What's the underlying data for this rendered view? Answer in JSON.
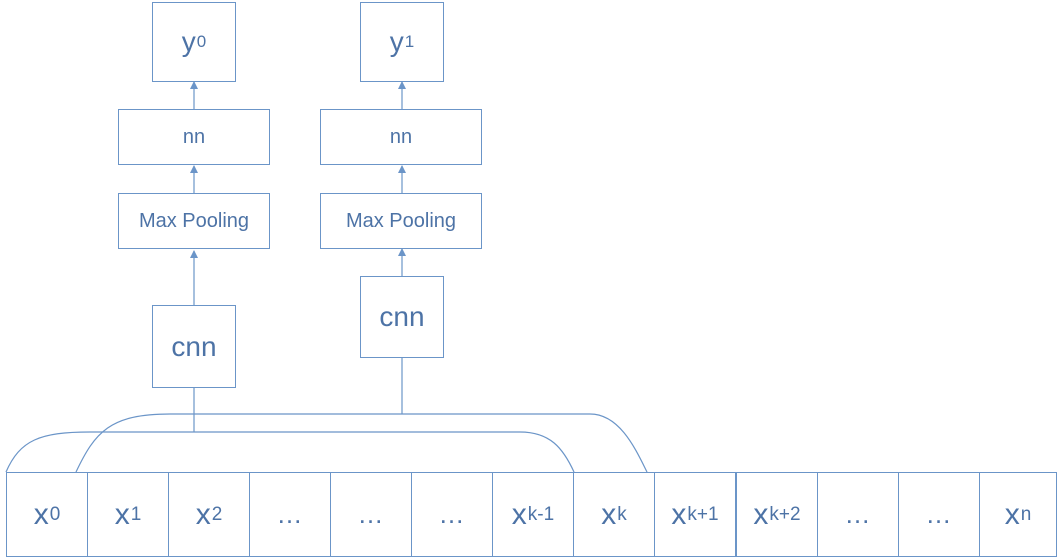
{
  "column_0": {
    "output": {
      "base": "y",
      "sub": "0"
    },
    "nn": "nn",
    "pool": "Max Pooling",
    "cnn": "cnn"
  },
  "column_1": {
    "output": {
      "base": "y",
      "sub": "1"
    },
    "nn": "nn",
    "pool": "Max Pooling",
    "cnn": "cnn"
  },
  "tokens": [
    {
      "base": "x",
      "sub": "0"
    },
    {
      "base": "x",
      "sub": "1"
    },
    {
      "base": "x",
      "sub": "2"
    },
    {
      "base": "…",
      "sub": ""
    },
    {
      "base": "…",
      "sub": ""
    },
    {
      "base": "…",
      "sub": ""
    },
    {
      "base": "x",
      "sub": "k-1"
    },
    {
      "base": "x",
      "sub": "k"
    },
    {
      "base": "x",
      "sub": "k+1"
    },
    {
      "base": "x",
      "sub": "k+2"
    },
    {
      "base": "…",
      "sub": ""
    },
    {
      "base": "…",
      "sub": ""
    },
    {
      "base": "x",
      "sub": "n"
    }
  ],
  "colors": {
    "stroke": "#6b95c8",
    "text": "#4d73a6"
  }
}
